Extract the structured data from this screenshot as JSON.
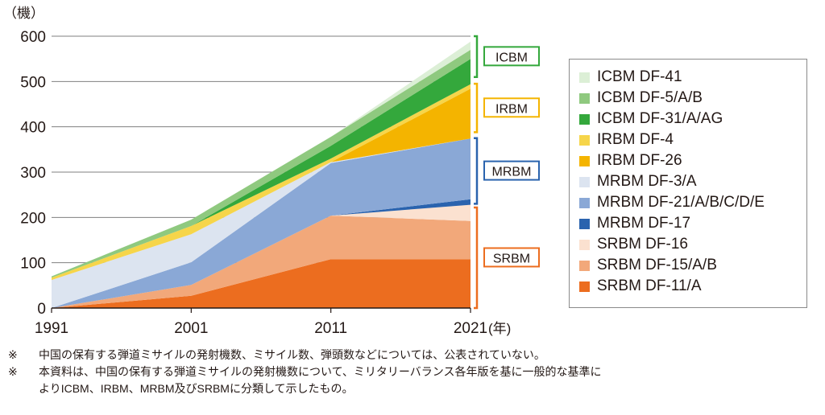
{
  "chart_data": {
    "type": "area",
    "stacked": true,
    "y_unit_label": "（機）",
    "x_unit_label": "(年)",
    "x": [
      1991,
      2001,
      2011,
      2021
    ],
    "x_tick_labels": [
      "1991",
      "2001",
      "2011",
      "2021"
    ],
    "ylim": [
      0,
      600
    ],
    "y_ticks": [
      0,
      100,
      200,
      300,
      400,
      500,
      600
    ],
    "grid": true,
    "legend_position": "right",
    "series": [
      {
        "name": "SRBM DF-11/A",
        "color": "#ec6d1f",
        "values": [
          0,
          27,
          108,
          108
        ]
      },
      {
        "name": "SRBM DF-15/A/B",
        "color": "#f2a87a",
        "values": [
          0,
          24,
          96,
          84
        ]
      },
      {
        "name": "SRBM DF-16",
        "color": "#fbe1d0",
        "values": [
          0,
          0,
          0,
          36
        ]
      },
      {
        "name": "MRBM DF-17",
        "color": "#2a63ae",
        "values": [
          0,
          0,
          0,
          12
        ]
      },
      {
        "name": "MRBM DF-21/A/B/C/D/E",
        "color": "#8aa8d6",
        "values": [
          0,
          50,
          116,
          134
        ]
      },
      {
        "name": "MRBM DF-3/A",
        "color": "#dce4f0",
        "values": [
          62,
          62,
          2,
          0
        ]
      },
      {
        "name": "IRBM DF-26",
        "color": "#f4b400",
        "values": [
          0,
          0,
          0,
          110
        ]
      },
      {
        "name": "IRBM DF-4",
        "color": "#f6d54a",
        "values": [
          5,
          18,
          8,
          10
        ]
      },
      {
        "name": "ICBM DF-31/A/AG",
        "color": "#34a83c",
        "values": [
          0,
          0,
          28,
          56
        ]
      },
      {
        "name": "ICBM DF-5/A/B",
        "color": "#8fc97f",
        "values": [
          3,
          14,
          20,
          20
        ]
      },
      {
        "name": "ICBM DF-41",
        "color": "#dcefd6",
        "values": [
          0,
          0,
          0,
          18
        ]
      }
    ],
    "groups": [
      {
        "label": "ICBM",
        "range": [
          510,
          600
        ],
        "color": "#34a83c"
      },
      {
        "label": "IRBM",
        "range": [
          388,
          495
        ],
        "color": "#f4b400"
      },
      {
        "label": "MRBM",
        "range": [
          230,
          375
        ],
        "color": "#2a63ae"
      },
      {
        "label": "SRBM",
        "range": [
          0,
          222
        ],
        "color": "#ec6d1f"
      }
    ]
  },
  "legend": [
    {
      "label": "ICBM DF-41",
      "color": "#dcefd6"
    },
    {
      "label": "ICBM DF-5/A/B",
      "color": "#8fc97f"
    },
    {
      "label": "ICBM DF-31/A/AG",
      "color": "#34a83c"
    },
    {
      "label": "IRBM DF-4",
      "color": "#f6d54a"
    },
    {
      "label": "IRBM DF-26",
      "color": "#f4b400"
    },
    {
      "label": "MRBM DF-3/A",
      "color": "#dce4f0"
    },
    {
      "label": "MRBM DF-21/A/B/C/D/E",
      "color": "#8aa8d6"
    },
    {
      "label": "MRBM DF-17",
      "color": "#2a63ae"
    },
    {
      "label": "SRBM DF-16",
      "color": "#fbe1d0"
    },
    {
      "label": "SRBM DF-15/A/B",
      "color": "#f2a87a"
    },
    {
      "label": "SRBM DF-11/A",
      "color": "#ec6d1f"
    }
  ],
  "notes": {
    "mark": "※",
    "note1": "中国の保有する弾道ミサイルの発射機数、ミサイル数、弾頭数などについては、公表されていない。",
    "note2_line1": "本資料は、中国の保有する弾道ミサイルの発射機数について、ミリタリーバランス各年版を基に一般的な基準に",
    "note2_line2": "よりICBM、IRBM、MRBM及びSRBMに分類して示したもの。"
  }
}
